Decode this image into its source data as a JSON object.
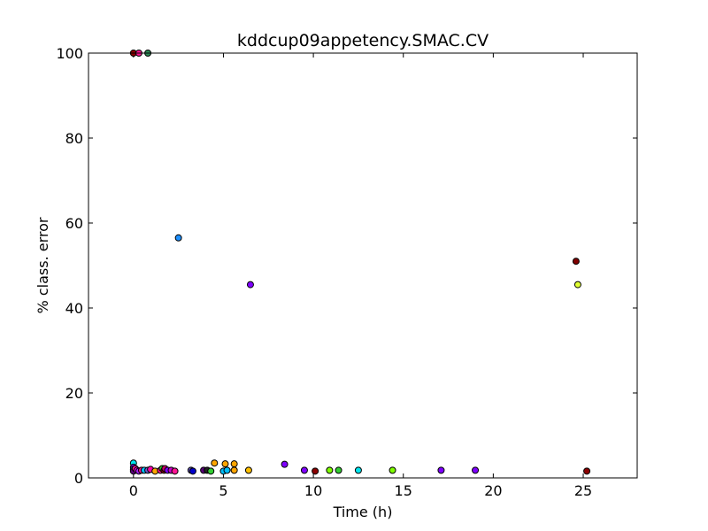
{
  "chart_data": {
    "type": "scatter",
    "title": "kddcup09appetency.SMAC.CV",
    "xlabel": "Time (h)",
    "ylabel": "% class. error",
    "xlim": [
      -2.5,
      28
    ],
    "ylim": [
      0,
      100
    ],
    "xticks": [
      0,
      5,
      10,
      15,
      20,
      25
    ],
    "yticks": [
      0,
      20,
      40,
      60,
      80,
      100
    ],
    "grid": false,
    "points": [
      {
        "x": 0.0,
        "y": 100,
        "color": "#8b0000"
      },
      {
        "x": 0.3,
        "y": 100,
        "color": "#ff1493"
      },
      {
        "x": 0.8,
        "y": 100,
        "color": "#2e8b57"
      },
      {
        "x": 2.5,
        "y": 56.5,
        "color": "#1e90ff"
      },
      {
        "x": 6.5,
        "y": 45.5,
        "color": "#7f00ff"
      },
      {
        "x": 24.6,
        "y": 51,
        "color": "#800000"
      },
      {
        "x": 24.7,
        "y": 45.5,
        "color": "#e0ff33"
      },
      {
        "x": 0.0,
        "y": 3.5,
        "color": "#00e5ee"
      },
      {
        "x": 0.0,
        "y": 2.5,
        "color": "#7f00ff"
      },
      {
        "x": 0.0,
        "y": 2.0,
        "color": "#00bfff"
      },
      {
        "x": 0.0,
        "y": 1.6,
        "color": "#5a007a"
      },
      {
        "x": 0.1,
        "y": 2.2,
        "color": "#ff1493"
      },
      {
        "x": 0.2,
        "y": 1.8,
        "color": "#ff00ff"
      },
      {
        "x": 0.3,
        "y": 1.6,
        "color": "#a020f0"
      },
      {
        "x": 0.45,
        "y": 1.8,
        "color": "#ff1493"
      },
      {
        "x": 0.6,
        "y": 1.8,
        "color": "#00bfff"
      },
      {
        "x": 0.8,
        "y": 1.8,
        "color": "#6a5acd"
      },
      {
        "x": 0.95,
        "y": 2.0,
        "color": "#ff00aa"
      },
      {
        "x": 1.2,
        "y": 1.6,
        "color": "#ffa500"
      },
      {
        "x": 1.5,
        "y": 1.8,
        "color": "#ff1493"
      },
      {
        "x": 1.6,
        "y": 2.2,
        "color": "#32cd32"
      },
      {
        "x": 1.7,
        "y": 1.8,
        "color": "#8b0000"
      },
      {
        "x": 1.75,
        "y": 2.2,
        "color": "#cc0066"
      },
      {
        "x": 1.9,
        "y": 1.8,
        "color": "#7f00ff"
      },
      {
        "x": 2.1,
        "y": 1.8,
        "color": "#cc00cc"
      },
      {
        "x": 2.3,
        "y": 1.6,
        "color": "#ff1493"
      },
      {
        "x": 3.2,
        "y": 1.8,
        "color": "#6a5acd"
      },
      {
        "x": 3.3,
        "y": 1.6,
        "color": "#0000cd"
      },
      {
        "x": 3.9,
        "y": 1.8,
        "color": "#5a007a"
      },
      {
        "x": 4.1,
        "y": 1.8,
        "color": "#222222"
      },
      {
        "x": 4.3,
        "y": 1.6,
        "color": "#32cd32"
      },
      {
        "x": 4.5,
        "y": 3.5,
        "color": "#ffa500"
      },
      {
        "x": 5.0,
        "y": 1.6,
        "color": "#00bfff"
      },
      {
        "x": 5.1,
        "y": 3.3,
        "color": "#ffa500"
      },
      {
        "x": 5.2,
        "y": 1.8,
        "color": "#00bfff"
      },
      {
        "x": 5.6,
        "y": 1.8,
        "color": "#ffa500"
      },
      {
        "x": 5.6,
        "y": 3.3,
        "color": "#ffa500"
      },
      {
        "x": 6.4,
        "y": 1.8,
        "color": "#ffc000"
      },
      {
        "x": 8.4,
        "y": 3.2,
        "color": "#7f00ff"
      },
      {
        "x": 9.5,
        "y": 1.8,
        "color": "#7f00ff"
      },
      {
        "x": 10.1,
        "y": 1.6,
        "color": "#8b0000"
      },
      {
        "x": 10.9,
        "y": 1.8,
        "color": "#7fff00"
      },
      {
        "x": 11.4,
        "y": 1.8,
        "color": "#32cd32"
      },
      {
        "x": 12.5,
        "y": 1.8,
        "color": "#00e5ee"
      },
      {
        "x": 14.4,
        "y": 1.8,
        "color": "#7fff00"
      },
      {
        "x": 17.1,
        "y": 1.8,
        "color": "#7f00ff"
      },
      {
        "x": 19.0,
        "y": 1.8,
        "color": "#7f00ff"
      },
      {
        "x": 25.2,
        "y": 1.6,
        "color": "#8b0000"
      }
    ]
  }
}
